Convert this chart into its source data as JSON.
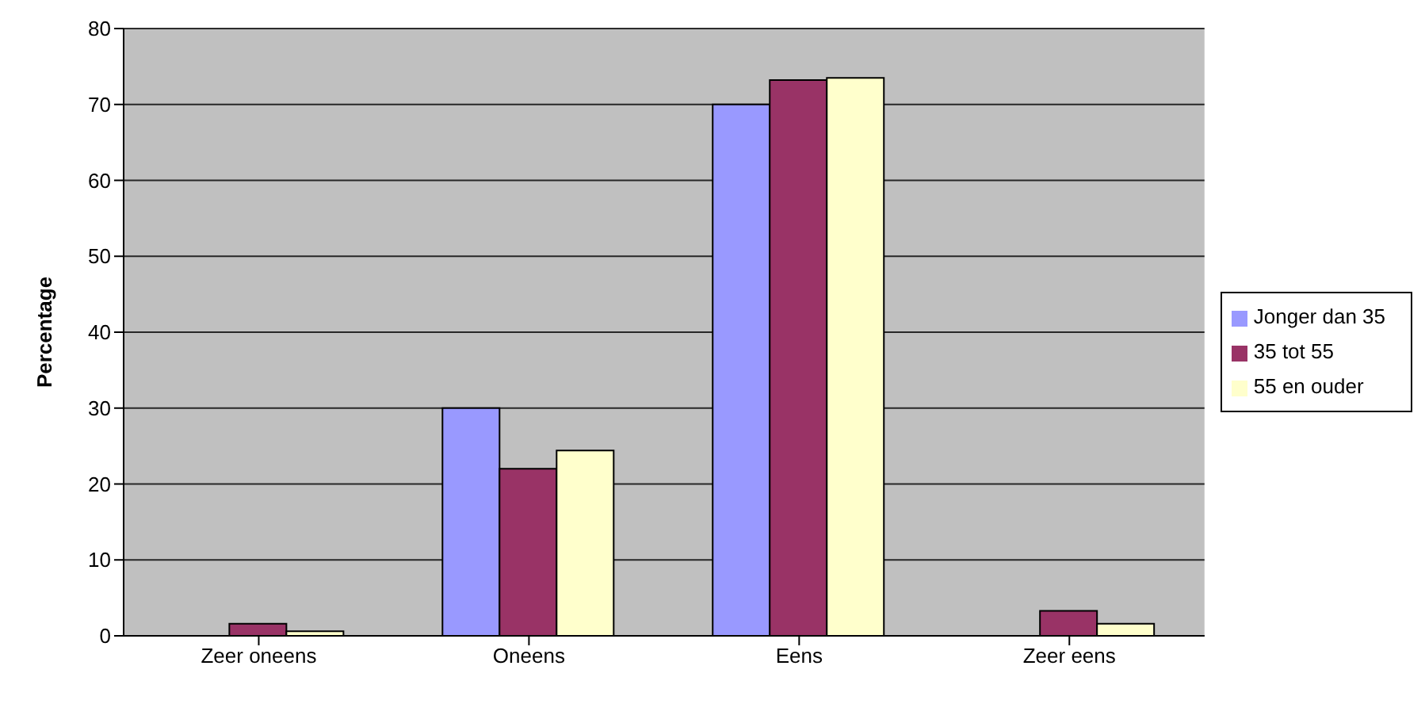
{
  "chart_data": {
    "type": "bar",
    "ylabel": "Percentage",
    "categories": [
      "Zeer oneens",
      "Oneens",
      "Eens",
      "Zeer eens"
    ],
    "series": [
      {
        "name": "Jonger dan 35",
        "color": "#9999ff",
        "values": [
          0,
          30,
          70,
          0
        ]
      },
      {
        "name": "35 tot 55",
        "color": "#993366",
        "values": [
          1.6,
          22,
          73.2,
          3.3
        ]
      },
      {
        "name": "55 en ouder",
        "color": "#ffffcc",
        "values": [
          0.6,
          24.4,
          73.5,
          1.6
        ]
      }
    ],
    "ylim": [
      0,
      80
    ],
    "yticks": [
      0,
      10,
      20,
      30,
      40,
      50,
      60,
      70,
      80
    ],
    "grid": "y",
    "legend": "right"
  }
}
